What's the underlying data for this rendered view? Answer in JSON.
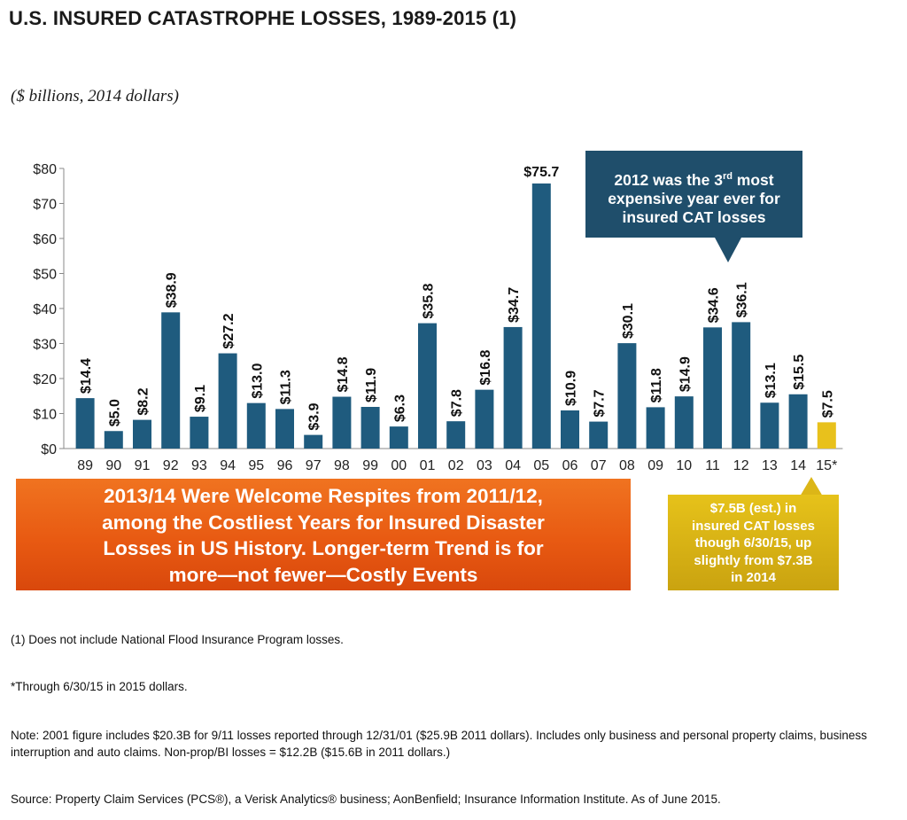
{
  "page": {
    "title": "U.S. INSURED CATASTROPHE LOSSES, 1989-2015 (1)",
    "subtitle": "($ billions, 2014 dollars)"
  },
  "colors": {
    "bar": "#1f5b7e",
    "bar_highlight": "#e8c11c",
    "axis": "#888888"
  },
  "chart_data": {
    "type": "bar",
    "categories": [
      "89",
      "90",
      "91",
      "92",
      "93",
      "94",
      "95",
      "96",
      "97",
      "98",
      "99",
      "00",
      "01",
      "02",
      "03",
      "04",
      "05",
      "06",
      "07",
      "08",
      "09",
      "10",
      "11",
      "12",
      "13",
      "14",
      "15*"
    ],
    "values": [
      14.4,
      5.0,
      8.2,
      38.9,
      9.1,
      27.2,
      13.0,
      11.3,
      3.9,
      14.8,
      11.9,
      6.3,
      35.8,
      7.8,
      16.8,
      34.7,
      75.7,
      10.9,
      7.7,
      30.1,
      11.8,
      14.9,
      34.6,
      36.1,
      13.1,
      15.5,
      7.5
    ],
    "data_labels": [
      "$14.4",
      "$5.0",
      "$8.2",
      "$38.9",
      "$9.1",
      "$27.2",
      "$13.0",
      "$11.3",
      "$3.9",
      "$14.8",
      "$11.9",
      "$6.3",
      "$35.8",
      "$7.8",
      "$16.8",
      "$34.7",
      "$75.7",
      "$10.9",
      "$7.7",
      "$30.1",
      "$11.8",
      "$14.9",
      "$34.6",
      "$36.1",
      "$13.1",
      "$15.5",
      "$7.5"
    ],
    "highlight_index": 26,
    "yticks": [
      "$0",
      "$10",
      "$20",
      "$30",
      "$40",
      "$50",
      "$60",
      "$70",
      "$80"
    ],
    "ylim": [
      0,
      80
    ],
    "grid": false,
    "legend": "none"
  },
  "callouts": {
    "top": [
      "2012  was the 3",
      "rd",
      " most",
      "expensive year ever for",
      "insured CAT losses"
    ],
    "banner": [
      "2013/14 Were Welcome Respites from 2011/12,",
      "among the Costliest Years for Insured Disaster",
      "Losses in US History.  Longer-term Trend is for",
      "more—not fewer—Costly Events"
    ],
    "gold": [
      "$7.5B (est.) in",
      "insured CAT losses",
      "though 6/30/15, up",
      "slightly from $7.3B",
      "in 2014"
    ]
  },
  "notes": {
    "note1": "(1) Does not include National Flood Insurance Program losses.",
    "note2": "*Through 6/30/15 in 2015 dollars.",
    "note3": "Note: 2001 figure includes $20.3B for 9/11 losses reported through 12/31/01 ($25.9B 2011 dollars). Includes only business and personal property claims, business interruption and auto claims. Non-prop/BI losses = $12.2B ($15.6B in 2011 dollars.)",
    "note4": "Source: Property Claim Services (PCS®), a Verisk Analytics® business; AonBenfield; Insurance Information Institute. As of June 2015."
  }
}
